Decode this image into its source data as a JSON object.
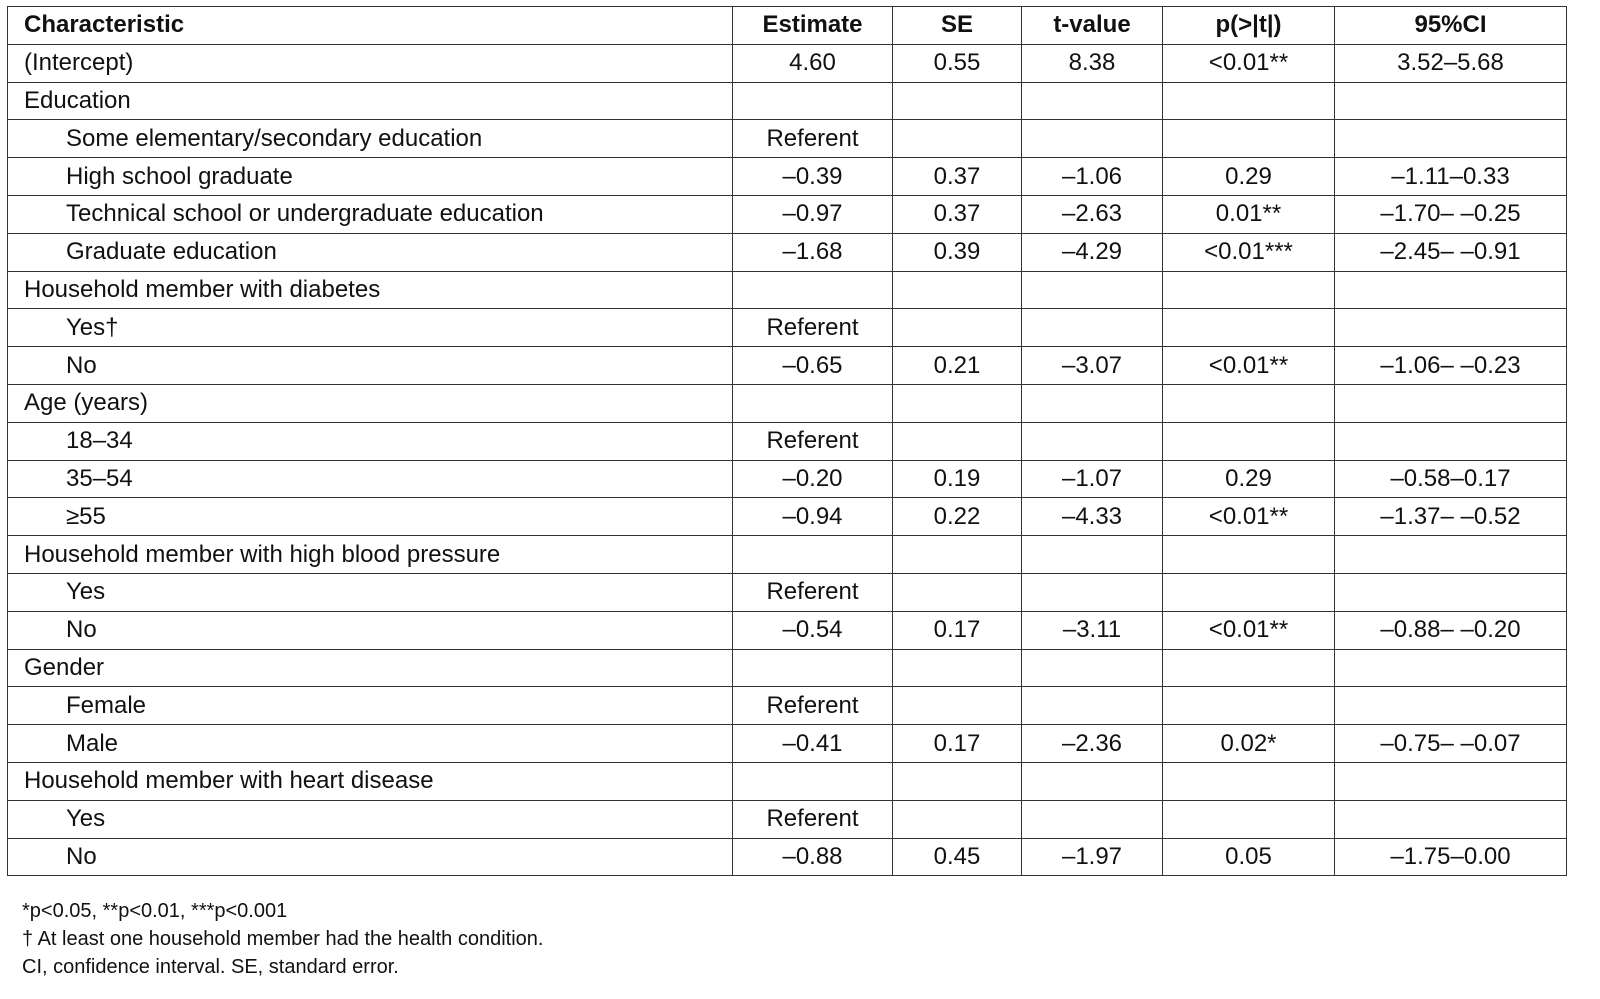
{
  "table": {
    "columns": [
      "Characteristic",
      "Estimate",
      "SE",
      "t-value",
      "p(>|t|)",
      "95%CI"
    ],
    "rows": [
      {
        "label": "(Intercept)",
        "cells": [
          "4.60",
          "0.55",
          "8.38",
          "<0.01**",
          "3.52–5.68"
        ]
      },
      {
        "group": "Education",
        "items": [
          {
            "label": "Some elementary/secondary education",
            "cells": [
              "Referent"
            ]
          },
          {
            "label": "High school graduate",
            "cells": [
              "–0.39",
              "0.37",
              "–1.06",
              "0.29",
              "–1.11–0.33"
            ]
          },
          {
            "label": "Technical school or undergraduate education",
            "cells": [
              "–0.97",
              "0.37",
              "–2.63",
              "0.01**",
              "–1.70– –0.25"
            ]
          },
          {
            "label": "Graduate education",
            "cells": [
              "–1.68",
              "0.39",
              "–4.29",
              "<0.01***",
              "–2.45– –0.91"
            ]
          }
        ]
      },
      {
        "group": "Household member with diabetes",
        "items": [
          {
            "label": "Yes†",
            "cells": [
              "Referent"
            ]
          },
          {
            "label": "No",
            "cells": [
              "–0.65",
              "0.21",
              "–3.07",
              "<0.01**",
              "–1.06– –0.23"
            ]
          }
        ]
      },
      {
        "group": "Age (years)",
        "items": [
          {
            "label": "18–34",
            "cells": [
              "Referent"
            ]
          },
          {
            "label": "35–54",
            "cells": [
              "–0.20",
              "0.19",
              "–1.07",
              "0.29",
              "–0.58–0.17"
            ]
          },
          {
            "label": "≥55",
            "cells": [
              "–0.94",
              "0.22",
              "–4.33",
              "<0.01**",
              "–1.37– –0.52"
            ]
          }
        ]
      },
      {
        "group": "Household member with high blood pressure",
        "items": [
          {
            "label": "Yes",
            "cells": [
              "Referent"
            ]
          },
          {
            "label": "No",
            "cells": [
              "–0.54",
              "0.17",
              "–3.11",
              "<0.01**",
              "–0.88– –0.20"
            ]
          }
        ]
      },
      {
        "group": "Gender",
        "items": [
          {
            "label": "Female",
            "cells": [
              "Referent"
            ]
          },
          {
            "label": "Male",
            "cells": [
              "–0.41",
              "0.17",
              "–2.36",
              "0.02*",
              "–0.75– –0.07"
            ]
          }
        ]
      },
      {
        "group": "Household member with heart disease",
        "items": [
          {
            "label": "Yes",
            "cells": [
              "Referent"
            ]
          },
          {
            "label": "No",
            "cells": [
              "–0.88",
              "0.45",
              "–1.97",
              "0.05",
              "–1.75–0.00"
            ]
          }
        ]
      }
    ]
  },
  "footnotes": [
    "*p<0.05, **p<0.01, ***p<0.001",
    "† At least one household member had the health condition.",
    "CI, confidence interval. SE, standard error."
  ]
}
